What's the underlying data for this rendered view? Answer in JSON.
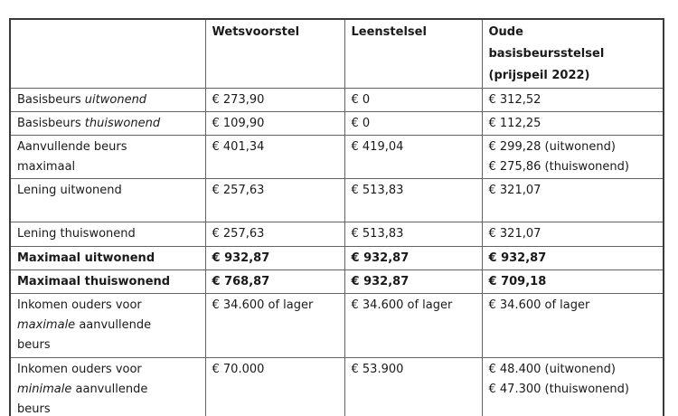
{
  "colors": {
    "text": "#1a1a1a",
    "grid_inner": "#636363",
    "grid_outer": "#3a3a3a",
    "background": "#ffffff"
  },
  "table": {
    "columns": [
      "",
      "Wetsvoorstel",
      "Leenstelsel",
      "Oude\nbasisbeursstelsel\n(prijspeil 2022)"
    ],
    "rows": [
      {
        "bold": false,
        "label": [
          {
            "t": "Basisbeurs "
          },
          {
            "t": "uitwonend",
            "i": true
          }
        ],
        "values": [
          "€ 273,90",
          "€ 0",
          "€ 312,52"
        ]
      },
      {
        "bold": false,
        "label": [
          {
            "t": "Basisbeurs "
          },
          {
            "t": "thuiswonend",
            "i": true
          }
        ],
        "values": [
          "€ 109,90",
          "€ 0",
          "€ 112,25"
        ]
      },
      {
        "bold": false,
        "label": [
          {
            "t": "Aanvullende beurs"
          },
          {
            "br": true
          },
          {
            "t": "maximaal"
          }
        ],
        "values": [
          "€ 401,34",
          "€ 419,04",
          "€ 299,28 (uitwonend)\n€ 275,86 (thuiswonend)"
        ]
      },
      {
        "bold": false,
        "label": [
          {
            "t": "Lening uitwonend"
          }
        ],
        "values": [
          "€ 257,63",
          "€ 513,83",
          "€ 321,07"
        ]
      },
      {
        "bold": false,
        "label": [
          {
            "t": "Lening thuiswonend"
          }
        ],
        "values": [
          "€ 257,63",
          "€ 513,83",
          "€ 321,07"
        ]
      },
      {
        "bold": true,
        "label": [
          {
            "t": "Maximaal uitwonend"
          }
        ],
        "values": [
          "€ 932,87",
          "€ 932,87",
          "€ 932,87"
        ]
      },
      {
        "bold": true,
        "label": [
          {
            "t": "Maximaal thuiswonend"
          }
        ],
        "values": [
          "€ 768,87",
          "€ 932,87",
          "€ 709,18"
        ]
      },
      {
        "bold": false,
        "label": [
          {
            "t": "Inkomen ouders voor"
          },
          {
            "br": true
          },
          {
            "t": "maximale",
            "i": true
          },
          {
            "t": " aanvullende"
          },
          {
            "br": true
          },
          {
            "t": "beurs"
          }
        ],
        "values": [
          "€ 34.600 of lager",
          "€ 34.600 of lager",
          "€ 34.600 of lager"
        ]
      },
      {
        "bold": false,
        "label": [
          {
            "t": "Inkomen ouders voor"
          },
          {
            "br": true
          },
          {
            "t": "minimale",
            "i": true
          },
          {
            "t": " aanvullende"
          },
          {
            "br": true
          },
          {
            "t": "beurs"
          }
        ],
        "values": [
          "€ 70.000",
          "€ 53.900",
          "€ 48.400 (uitwonend)\n€ 47.300 (thuiswonend)"
        ]
      }
    ]
  }
}
